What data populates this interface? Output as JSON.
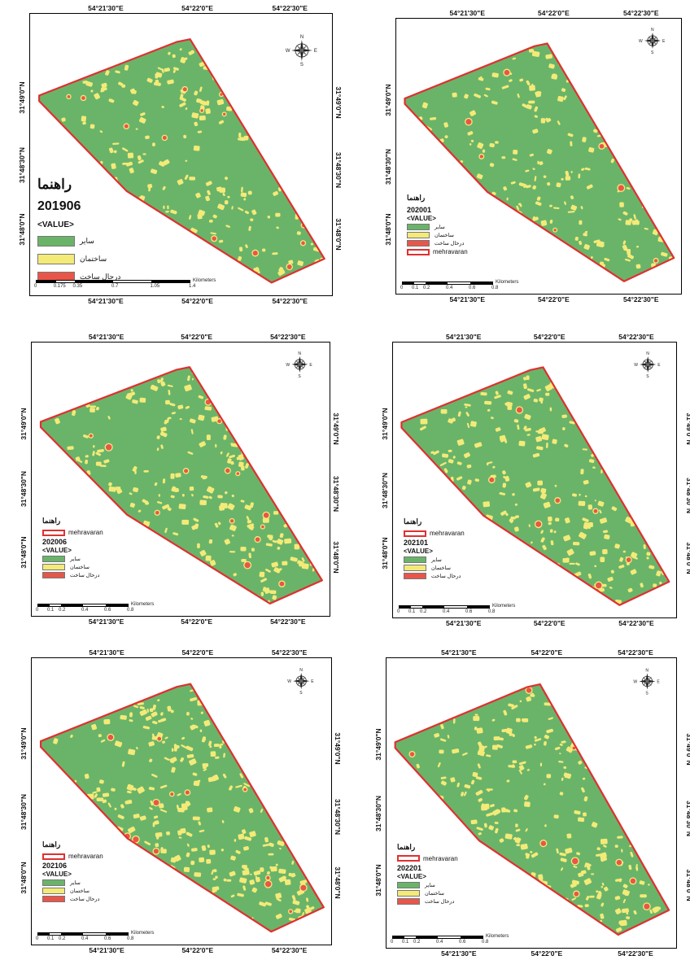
{
  "colors": {
    "other": "#6ab46a",
    "building": "#f4ea78",
    "construction": "#e8564a",
    "boundary": "#e03030"
  },
  "lat_labels": [
    "31°49'0\"N",
    "31°48'30\"N",
    "31°48'0\"N"
  ],
  "lon_labels": [
    "54°21'30\"E",
    "54°22'0\"E",
    "54°22'30\"E"
  ],
  "legend": {
    "title": "راهنما",
    "value_label": "<VALUE>",
    "boundary_label": "mehravaran",
    "classes": [
      {
        "key": "other",
        "label": "سایر"
      },
      {
        "key": "building",
        "label": "ساختمان"
      },
      {
        "key": "construction",
        "label": "درحال ساخت"
      }
    ]
  },
  "scale_unit": "Kilometers",
  "panels": [
    {
      "id": "201906",
      "year": "201906",
      "show_boundary_entry": false,
      "scale_ticks": [
        "0",
        "0.175",
        "0.35",
        "0.7",
        "1.05",
        "1.4"
      ],
      "density": 1.0
    },
    {
      "id": "202001",
      "year": "202001",
      "show_boundary_entry": true,
      "scale_ticks": [
        "0",
        "0.1",
        "0.2",
        "0.4",
        "0.6",
        "0.8"
      ],
      "density": 1.0
    },
    {
      "id": "202006",
      "year": "202006",
      "show_boundary_entry": true,
      "scale_ticks": [
        "0",
        "0.1",
        "0.2",
        "0.4",
        "0.6",
        "0.8"
      ],
      "density": 1.1
    },
    {
      "id": "202101",
      "year": "202101",
      "show_boundary_entry": true,
      "scale_ticks": [
        "0",
        "0.1",
        "0.2",
        "0.4",
        "0.6",
        "0.8"
      ],
      "density": 1.1
    },
    {
      "id": "202106",
      "year": "202106",
      "show_boundary_entry": true,
      "scale_ticks": [
        "0",
        "0.1",
        "0.2",
        "0.4",
        "0.6",
        "0.8"
      ],
      "density": 1.35
    },
    {
      "id": "202201",
      "year": "202201",
      "show_boundary_entry": true,
      "scale_ticks": [
        "0",
        "0.1",
        "0.2",
        "0.4",
        "0.6",
        "0.8"
      ],
      "density": 1.2
    }
  ]
}
